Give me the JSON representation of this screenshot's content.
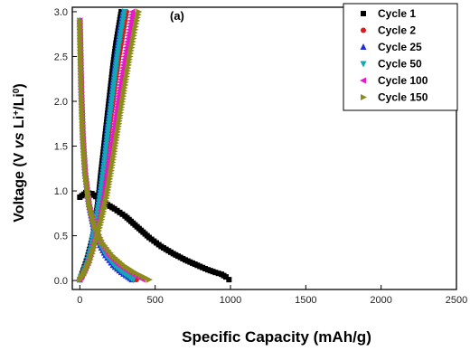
{
  "chart_data": {
    "type": "line",
    "panel_label": "(a)",
    "xlabel": "Specific Capacity (mAh/g)",
    "ylabel_parts": [
      "Voltage (V ",
      "vs",
      " Li",
      "+",
      "/Li",
      "0",
      ")"
    ],
    "xlim": [
      -50,
      2500
    ],
    "ylim": [
      -0.1,
      3.05
    ],
    "x_ticks": [
      0,
      500,
      1000,
      1500,
      2000,
      2500
    ],
    "y_ticks": [
      0.0,
      0.5,
      1.0,
      1.5,
      2.0,
      2.5,
      3.0
    ],
    "x_tick_labels": [
      "0",
      "500",
      "1000",
      "1500",
      "2000",
      "2500"
    ],
    "y_tick_labels": [
      "0.0",
      "0.5",
      "1.0",
      "1.5",
      "2.0",
      "2.5",
      "3.0"
    ],
    "legend_position": "top-right",
    "series": [
      {
        "name": "Cycle 1",
        "color": "#000000",
        "marker": "square",
        "discharge": [
          [
            0,
            0.93
          ],
          [
            40,
            0.98
          ],
          [
            80,
            0.97
          ],
          [
            120,
            0.92
          ],
          [
            170,
            0.86
          ],
          [
            230,
            0.8
          ],
          [
            300,
            0.72
          ],
          [
            380,
            0.6
          ],
          [
            460,
            0.48
          ],
          [
            540,
            0.38
          ],
          [
            620,
            0.3
          ],
          [
            700,
            0.23
          ],
          [
            780,
            0.17
          ],
          [
            850,
            0.12
          ],
          [
            900,
            0.09
          ],
          [
            940,
            0.07
          ],
          [
            970,
            0.04
          ],
          [
            990,
            0.01
          ]
        ],
        "charge": [
          [
            0,
            0.01
          ],
          [
            15,
            0.08
          ],
          [
            30,
            0.15
          ],
          [
            50,
            0.25
          ],
          [
            70,
            0.38
          ],
          [
            90,
            0.52
          ],
          [
            110,
            0.75
          ],
          [
            125,
            0.95
          ],
          [
            140,
            1.2
          ],
          [
            160,
            1.5
          ],
          [
            180,
            1.8
          ],
          [
            200,
            2.1
          ],
          [
            220,
            2.4
          ],
          [
            240,
            2.65
          ],
          [
            260,
            2.85
          ],
          [
            275,
            3.0
          ]
        ]
      },
      {
        "name": "Cycle 2",
        "color": "#e0191a",
        "marker": "circle",
        "discharge": [
          [
            0,
            2.9
          ],
          [
            5,
            2.5
          ],
          [
            10,
            2.1
          ],
          [
            20,
            1.6
          ],
          [
            35,
            1.2
          ],
          [
            60,
            0.85
          ],
          [
            90,
            0.6
          ],
          [
            130,
            0.42
          ],
          [
            180,
            0.28
          ],
          [
            240,
            0.17
          ],
          [
            300,
            0.09
          ],
          [
            350,
            0.04
          ],
          [
            375,
            0.01
          ]
        ],
        "charge": [
          [
            0,
            0.01
          ],
          [
            20,
            0.08
          ],
          [
            50,
            0.2
          ],
          [
            80,
            0.4
          ],
          [
            110,
            0.65
          ],
          [
            140,
            0.95
          ],
          [
            170,
            1.35
          ],
          [
            200,
            1.75
          ],
          [
            230,
            2.15
          ],
          [
            260,
            2.5
          ],
          [
            290,
            2.8
          ],
          [
            310,
            3.0
          ]
        ]
      },
      {
        "name": "Cycle 25",
        "color": "#1f2fd6",
        "marker": "triangle-up",
        "discharge": [
          [
            0,
            2.9
          ],
          [
            5,
            2.5
          ],
          [
            10,
            2.1
          ],
          [
            20,
            1.6
          ],
          [
            35,
            1.2
          ],
          [
            60,
            0.85
          ],
          [
            90,
            0.6
          ],
          [
            125,
            0.42
          ],
          [
            170,
            0.28
          ],
          [
            220,
            0.17
          ],
          [
            275,
            0.09
          ],
          [
            320,
            0.04
          ],
          [
            345,
            0.01
          ]
        ],
        "charge": [
          [
            0,
            0.01
          ],
          [
            20,
            0.08
          ],
          [
            45,
            0.2
          ],
          [
            75,
            0.4
          ],
          [
            100,
            0.65
          ],
          [
            130,
            0.95
          ],
          [
            160,
            1.35
          ],
          [
            185,
            1.75
          ],
          [
            215,
            2.15
          ],
          [
            240,
            2.5
          ],
          [
            265,
            2.8
          ],
          [
            285,
            3.0
          ]
        ]
      },
      {
        "name": "Cycle 50",
        "color": "#12a9b5",
        "marker": "triangle-down",
        "discharge": [
          [
            0,
            2.9
          ],
          [
            5,
            2.5
          ],
          [
            10,
            2.1
          ],
          [
            20,
            1.6
          ],
          [
            35,
            1.2
          ],
          [
            60,
            0.85
          ],
          [
            90,
            0.6
          ],
          [
            128,
            0.42
          ],
          [
            175,
            0.28
          ],
          [
            230,
            0.17
          ],
          [
            285,
            0.09
          ],
          [
            330,
            0.04
          ],
          [
            355,
            0.01
          ]
        ],
        "charge": [
          [
            0,
            0.01
          ],
          [
            20,
            0.08
          ],
          [
            48,
            0.2
          ],
          [
            78,
            0.4
          ],
          [
            105,
            0.65
          ],
          [
            135,
            0.95
          ],
          [
            165,
            1.35
          ],
          [
            192,
            1.75
          ],
          [
            222,
            2.15
          ],
          [
            248,
            2.5
          ],
          [
            275,
            2.8
          ],
          [
            295,
            3.0
          ]
        ]
      },
      {
        "name": "Cycle 100",
        "color": "#e619c8",
        "marker": "triangle-left",
        "discharge": [
          [
            0,
            2.9
          ],
          [
            5,
            2.5
          ],
          [
            10,
            2.1
          ],
          [
            20,
            1.6
          ],
          [
            35,
            1.2
          ],
          [
            60,
            0.85
          ],
          [
            95,
            0.6
          ],
          [
            140,
            0.42
          ],
          [
            195,
            0.28
          ],
          [
            260,
            0.17
          ],
          [
            330,
            0.09
          ],
          [
            385,
            0.04
          ],
          [
            420,
            0.01
          ]
        ],
        "charge": [
          [
            0,
            0.01
          ],
          [
            25,
            0.08
          ],
          [
            55,
            0.2
          ],
          [
            90,
            0.4
          ],
          [
            125,
            0.65
          ],
          [
            160,
            0.95
          ],
          [
            195,
            1.35
          ],
          [
            230,
            1.75
          ],
          [
            265,
            2.15
          ],
          [
            300,
            2.5
          ],
          [
            330,
            2.8
          ],
          [
            350,
            3.0
          ]
        ]
      },
      {
        "name": "Cycle 150",
        "color": "#8c8c1c",
        "marker": "triangle-right",
        "discharge": [
          [
            0,
            2.9
          ],
          [
            5,
            2.5
          ],
          [
            10,
            2.1
          ],
          [
            20,
            1.6
          ],
          [
            35,
            1.2
          ],
          [
            62,
            0.85
          ],
          [
            100,
            0.6
          ],
          [
            150,
            0.42
          ],
          [
            215,
            0.28
          ],
          [
            290,
            0.17
          ],
          [
            365,
            0.09
          ],
          [
            425,
            0.04
          ],
          [
            460,
            0.01
          ]
        ],
        "charge": [
          [
            0,
            0.01
          ],
          [
            28,
            0.08
          ],
          [
            62,
            0.2
          ],
          [
            100,
            0.4
          ],
          [
            140,
            0.65
          ],
          [
            180,
            0.95
          ],
          [
            220,
            1.35
          ],
          [
            258,
            1.75
          ],
          [
            296,
            2.15
          ],
          [
            332,
            2.5
          ],
          [
            365,
            2.8
          ],
          [
            390,
            3.0
          ]
        ]
      }
    ]
  }
}
